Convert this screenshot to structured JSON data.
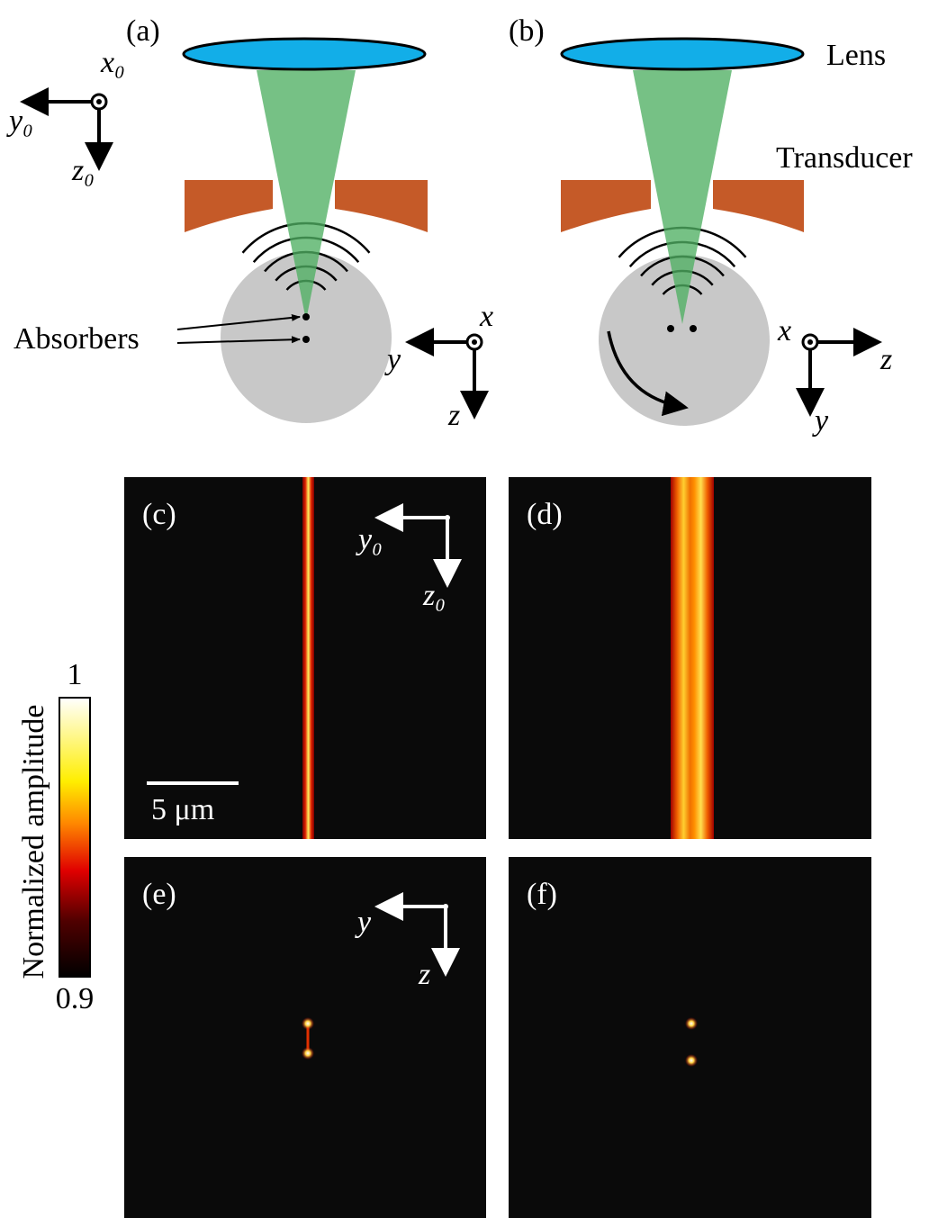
{
  "panel_labels": [
    "(a)",
    "(b)",
    "(c)",
    "(d)",
    "(e)",
    "(f)"
  ],
  "lens_label": "Lens",
  "transducer_label": "Transducer",
  "absorbers_label": "Absorbers",
  "axes": {
    "a_lab": {
      "x": "x₀",
      "y": "y₀",
      "z": "z₀"
    },
    "a_sample": {
      "x": "x",
      "y": "y",
      "z": "z"
    },
    "b_sample": {
      "x": "x",
      "y": "y",
      "z": "z"
    },
    "c": {
      "y": "y₀",
      "z": "z₀"
    },
    "e": {
      "y": "y",
      "z": "z"
    }
  },
  "scale_bar": "5 μm",
  "colorbar": {
    "title": "Normalized amplitude",
    "max": "1",
    "min": "0.9"
  }
}
